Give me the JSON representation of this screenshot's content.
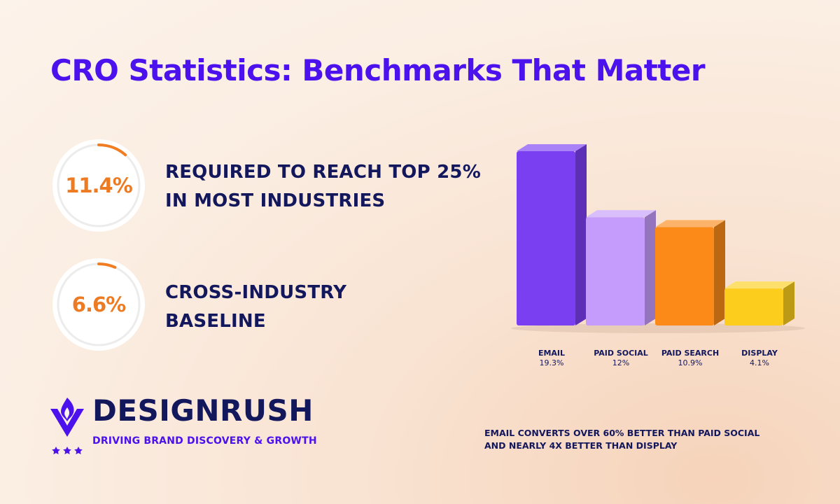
{
  "title": "CRO Statistics: Benchmarks That Matter",
  "stats": [
    {
      "value": "11.4%",
      "progress": 0.114,
      "label_line1": "REQUIRED TO REACH TOP 25%",
      "label_line2": "IN MOST INDUSTRIES"
    },
    {
      "value": "6.6%",
      "progress": 0.066,
      "label_line1": "CROSS-INDUSTRY",
      "label_line2": "BASELINE"
    }
  ],
  "chart_data": {
    "type": "bar",
    "title": "",
    "xlabel": "",
    "ylabel": "",
    "ylim": [
      0,
      20
    ],
    "grid": false,
    "categories": [
      "EMAIL",
      "PAID SOCIAL",
      "PAID SEARCH",
      "DISPLAY"
    ],
    "values": [
      19.3,
      12,
      10.9,
      4.1
    ],
    "value_labels": [
      "19.3%",
      "12%",
      "10.9%",
      "4.1%"
    ],
    "colors": [
      "#7b3ff2",
      "#c59bfb",
      "#fb8a18",
      "#fccd1c"
    ]
  },
  "brand": {
    "name": "DESIGNRUSH",
    "tagline": "DRIVING BRAND DISCOVERY & GROWTH"
  },
  "footnote": {
    "line1": "EMAIL CONVERTS OVER 60% BETTER THAN PAID SOCIAL",
    "line2": "AND NEARLY 4X BETTER THAN DISPLAY"
  },
  "colors": {
    "accent": "#4b12ee",
    "navy": "#13175c",
    "orange": "#ec7b23"
  },
  "icons": {
    "logo": "flame-v-logo-icon",
    "stars": "star-icon"
  }
}
